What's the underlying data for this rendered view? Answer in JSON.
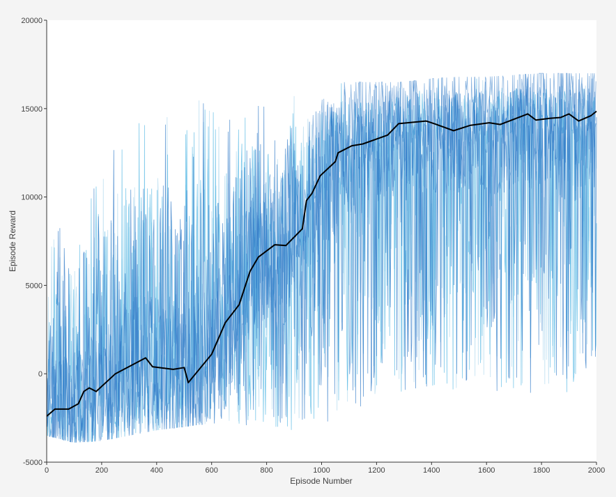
{
  "chart_data": {
    "type": "line",
    "title": "",
    "xlabel": "Episode Number",
    "ylabel": "Episode Reward",
    "xlim": [
      0,
      2000
    ],
    "ylim": [
      -5000,
      20000
    ],
    "xticks": [
      "0",
      "200",
      "400",
      "600",
      "800",
      "1000",
      "1200",
      "1400",
      "1600",
      "1800",
      "2000"
    ],
    "yticks": [
      "-5000",
      "0",
      "5000",
      "10000",
      "15000",
      "20000"
    ],
    "grid": false,
    "legend": "none",
    "colors": {
      "average_line": "#000000",
      "episode_light": "#c5e3f3",
      "episode_mid": "#4fb6e3",
      "episode_dark": "#2e78c7",
      "plot_background": "#ffffff",
      "figure_background": "#f4f4f4"
    },
    "series": [
      {
        "style": "black average line",
        "x": [
          0,
          30,
          80,
          115,
          135,
          155,
          180,
          250,
          360,
          385,
          460,
          500,
          515,
          600,
          650,
          700,
          740,
          770,
          830,
          870,
          930,
          945,
          965,
          995,
          1050,
          1060,
          1110,
          1150,
          1240,
          1280,
          1380,
          1410,
          1480,
          1540,
          1610,
          1650,
          1750,
          1780,
          1830,
          1870,
          1900,
          1935,
          1980,
          2000
        ],
        "y": [
          -2400,
          -2000,
          -2000,
          -1700,
          -1000,
          -800,
          -1000,
          0,
          900,
          400,
          250,
          350,
          -500,
          1100,
          2900,
          3900,
          5800,
          6600,
          7300,
          7250,
          8200,
          9800,
          10200,
          11200,
          12000,
          12500,
          12900,
          13000,
          13500,
          14150,
          14300,
          14150,
          13750,
          14050,
          14200,
          14100,
          14700,
          14350,
          14450,
          14500,
          14700,
          14300,
          14600,
          14850
        ]
      },
      {
        "style": "blue per-episode rewards (dense band, envelope)",
        "x": [
          0,
          100,
          200,
          300,
          400,
          500,
          600,
          700,
          800,
          900,
          1000,
          1100,
          1200,
          1300,
          1400,
          1500,
          1600,
          1700,
          1800,
          1900,
          2000
        ],
        "y_max": [
          9000,
          10000,
          12000,
          14000,
          15000,
          15500,
          15500,
          15500,
          16000,
          16500,
          16500,
          16500,
          16500,
          16500,
          16700,
          16800,
          16800,
          16900,
          17000,
          17000,
          17000
        ],
        "y_min": [
          -3500,
          -3900,
          -3800,
          -3500,
          -3200,
          -3000,
          -2800,
          -2900,
          -3000,
          -3300,
          -2800,
          -2500,
          -1200,
          -1100,
          -1000,
          -900,
          -800,
          -1500,
          -1600,
          -1200,
          600
        ]
      }
    ]
  }
}
